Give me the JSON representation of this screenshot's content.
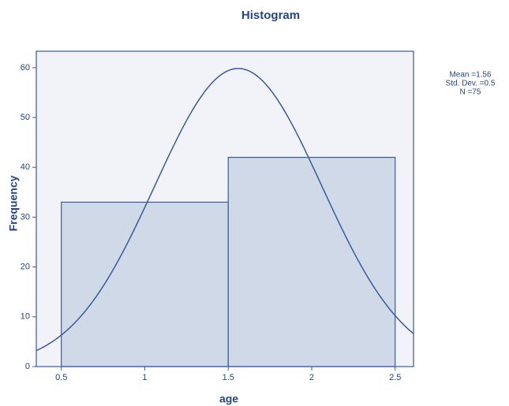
{
  "chart_data": {
    "type": "histogram",
    "title": "Histogram",
    "x_label": "age",
    "y_label": "Frequency",
    "bins": [
      0.5,
      1.5,
      2.5
    ],
    "values": [
      33,
      42
    ],
    "color": "#d0d9e8",
    "edge_color": "#3a5a9a",
    "xlim": [
      0.35,
      2.61
    ],
    "ylim": [
      0,
      63.3
    ],
    "xticks": [
      0.5,
      1,
      1.5,
      2,
      2.5
    ],
    "yticks": [
      0,
      10,
      20,
      30,
      40,
      50,
      60
    ],
    "stats": [
      {
        "value": 1.56,
        "label": "Mean =1.56"
      },
      {
        "value": 0.5,
        "label": "Std. Dev. =0.5"
      },
      {
        "value": 75,
        "label": "N =75"
      }
    ],
    "normal_curve": true
  }
}
